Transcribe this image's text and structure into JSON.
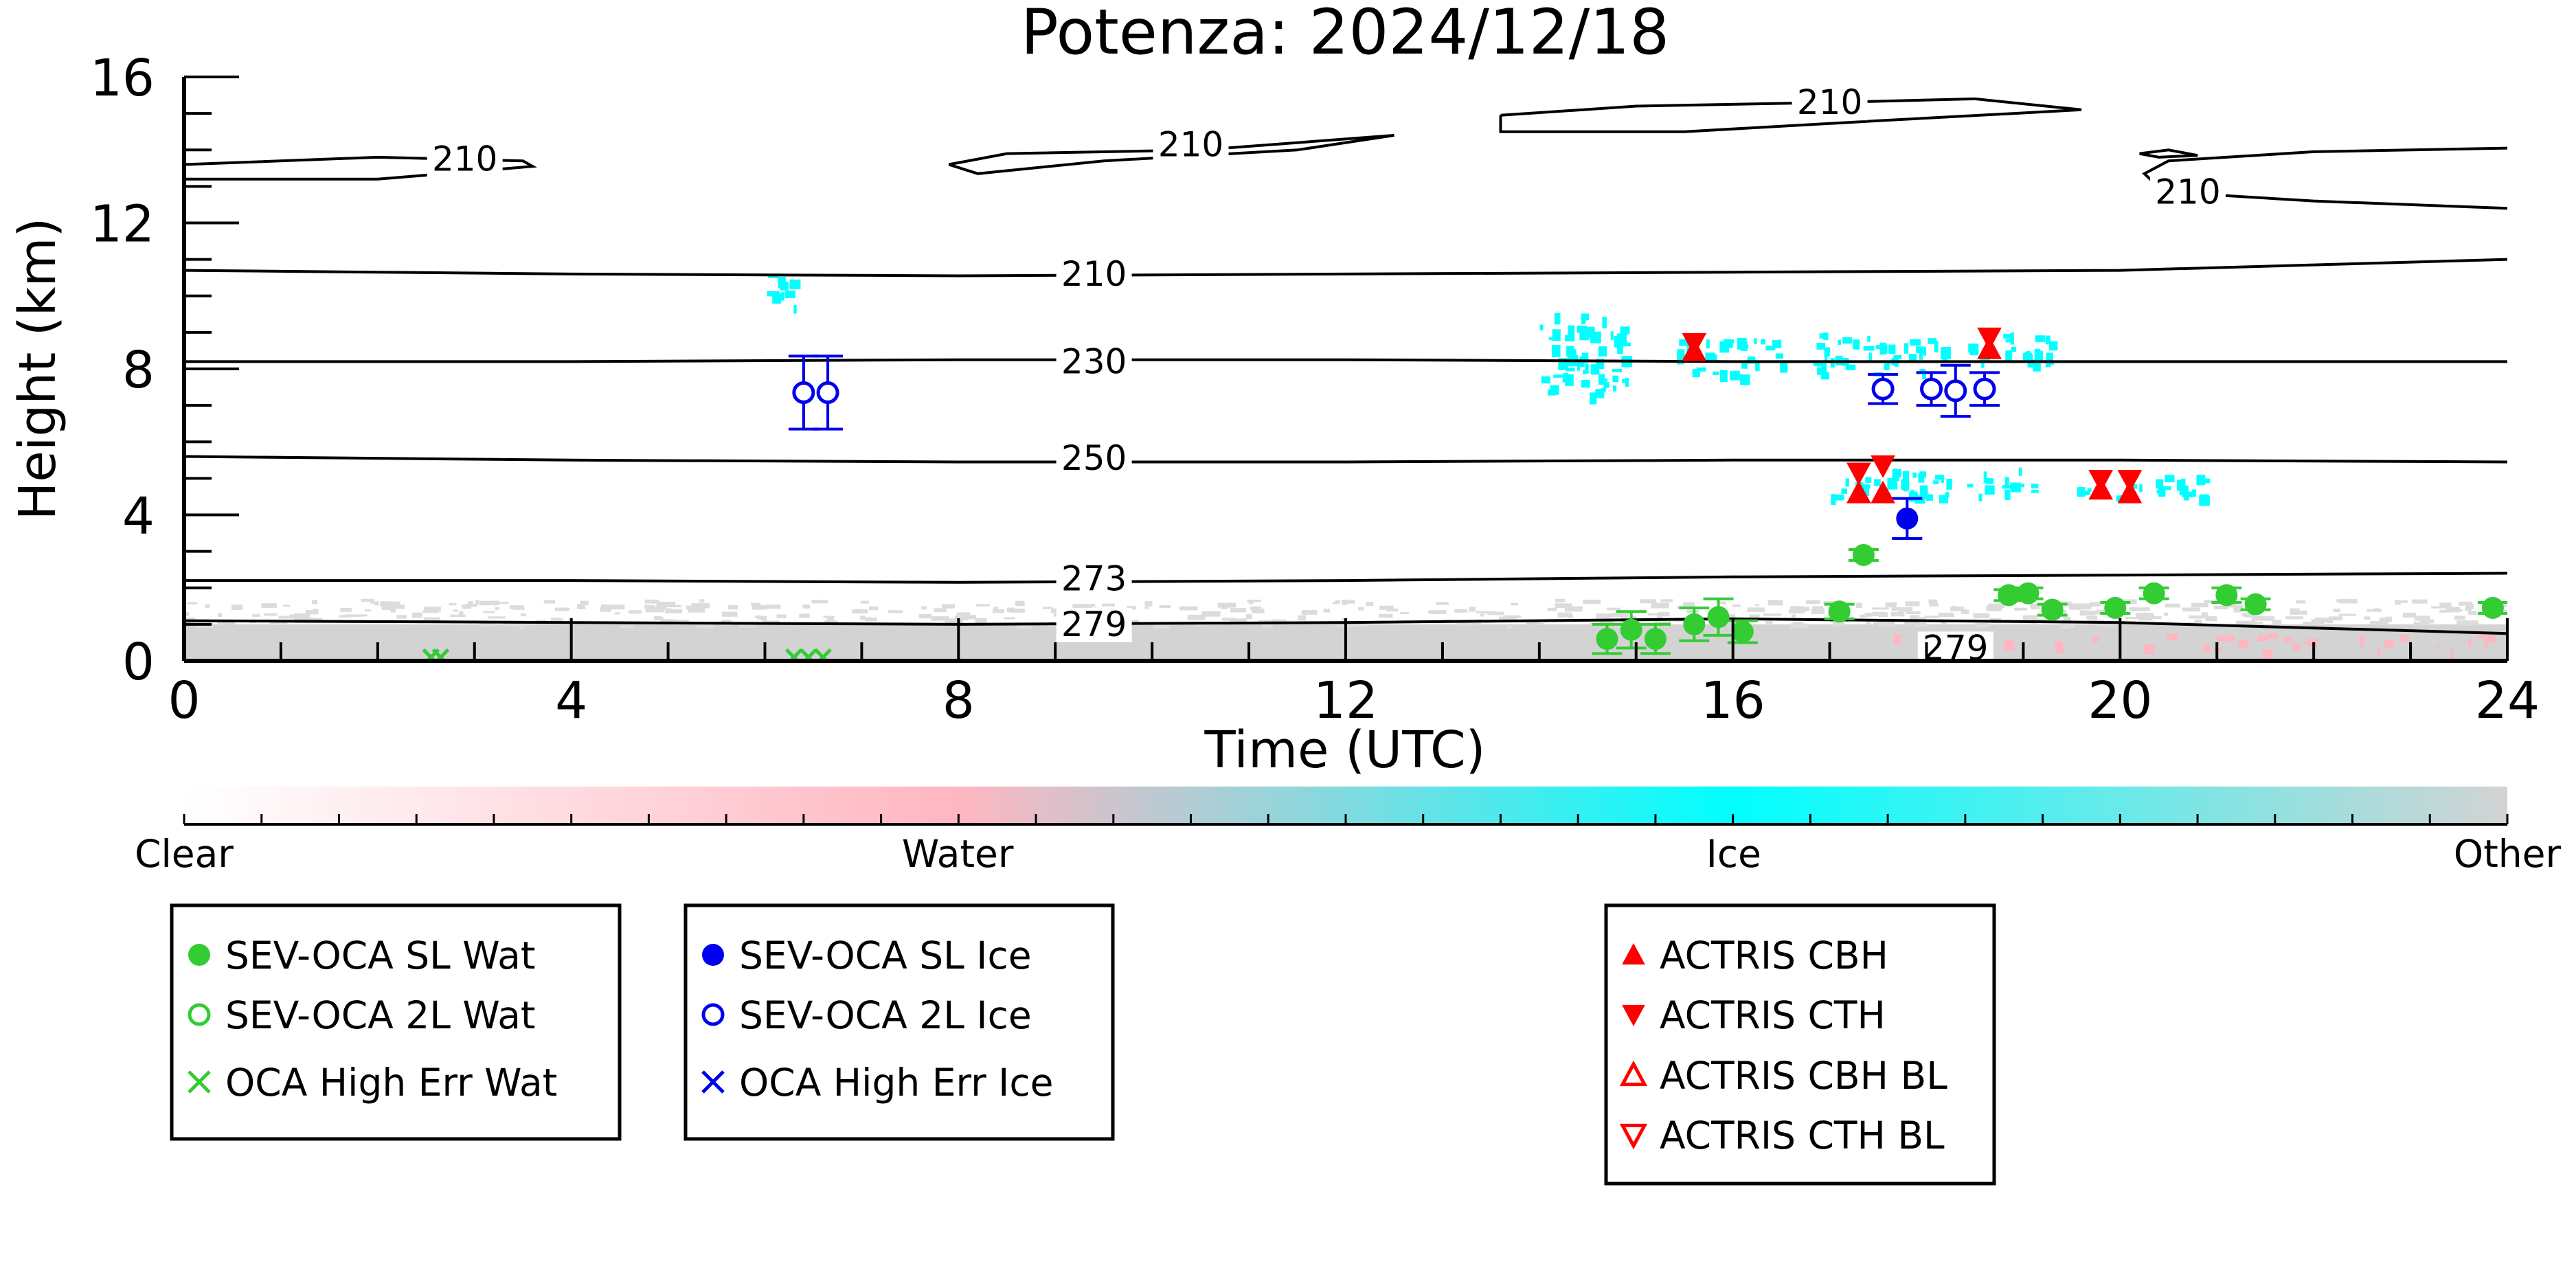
{
  "chart_data": {
    "type": "scatter",
    "title": "Potenza: 2024/12/18",
    "xlabel": "Time (UTC)",
    "ylabel": "Height (km)",
    "xlim": [
      0,
      24
    ],
    "ylim": [
      0,
      16
    ],
    "x_ticks": [
      "0",
      "4",
      "8",
      "12",
      "16",
      "20",
      "24"
    ],
    "y_ticks": [
      "0",
      "4",
      "8",
      "12",
      "16"
    ],
    "colors": {
      "sl_wat": "#33cc33",
      "ice": "#0000ee",
      "actris": "#ff0000",
      "ice_mask": "#00ffff",
      "other_mask": "#d3d3d3",
      "water_mask": "#ffb6c1"
    },
    "colorbar": {
      "labels": [
        "Clear",
        "Water",
        "Ice",
        "Other"
      ],
      "positions": [
        0,
        0.333,
        0.667,
        1
      ]
    },
    "legend_groups": [
      {
        "name": "water",
        "items": [
          {
            "label": "SEV-OCA SL Wat",
            "marker": "filled-circle",
            "color": "#33cc33"
          },
          {
            "label": "SEV-OCA 2L Wat",
            "marker": "open-circle",
            "color": "#33cc33"
          },
          {
            "label": "OCA High Err Wat",
            "marker": "x",
            "color": "#33cc33"
          }
        ]
      },
      {
        "name": "ice",
        "items": [
          {
            "label": "SEV-OCA SL Ice",
            "marker": "filled-circle",
            "color": "#0000ee"
          },
          {
            "label": "SEV-OCA 2L Ice",
            "marker": "open-circle",
            "color": "#0000ee"
          },
          {
            "label": "OCA High Err Ice",
            "marker": "x",
            "color": "#0000ee"
          }
        ]
      },
      {
        "name": "actris",
        "items": [
          {
            "label": "ACTRIS CBH",
            "marker": "triangle-up",
            "color": "#ff0000"
          },
          {
            "label": "ACTRIS CTH",
            "marker": "triangle-down",
            "color": "#ff0000"
          },
          {
            "label": "ACTRIS CBH BL",
            "marker": "triangle-up-open",
            "color": "#ff0000"
          },
          {
            "label": "ACTRIS CTH BL",
            "marker": "triangle-down-open",
            "color": "#ff0000"
          }
        ]
      }
    ],
    "series": [
      {
        "name": "SEV-OCA SL Wat",
        "marker": "filled-circle",
        "color": "#33cc33",
        "points": [
          {
            "x": 14.7,
            "y": 0.6,
            "err": 0.4
          },
          {
            "x": 14.95,
            "y": 0.85,
            "err": 0.5
          },
          {
            "x": 15.2,
            "y": 0.6,
            "err": 0.4
          },
          {
            "x": 15.6,
            "y": 1.0,
            "err": 0.45
          },
          {
            "x": 15.85,
            "y": 1.2,
            "err": 0.5
          },
          {
            "x": 16.1,
            "y": 0.8,
            "err": 0.3
          },
          {
            "x": 17.1,
            "y": 1.35,
            "err": 0.2
          },
          {
            "x": 17.35,
            "y": 2.9,
            "err": 0.15
          },
          {
            "x": 18.85,
            "y": 1.8,
            "err": 0.15
          },
          {
            "x": 19.05,
            "y": 1.85,
            "err": 0.15
          },
          {
            "x": 19.3,
            "y": 1.4,
            "err": 0.15
          },
          {
            "x": 19.95,
            "y": 1.45,
            "err": 0.15
          },
          {
            "x": 20.35,
            "y": 1.85,
            "err": 0.15
          },
          {
            "x": 21.1,
            "y": 1.8,
            "err": 0.2
          },
          {
            "x": 21.4,
            "y": 1.55,
            "err": 0.15
          },
          {
            "x": 23.85,
            "y": 1.45,
            "err": 0.15
          }
        ]
      },
      {
        "name": "SEV-OCA 2L Wat",
        "marker": "open-circle",
        "color": "#33cc33",
        "points": []
      },
      {
        "name": "OCA High Err Wat",
        "marker": "x",
        "color": "#33cc33",
        "points": [
          {
            "x": 2.55,
            "y": 0.1
          },
          {
            "x": 2.65,
            "y": 0.1
          },
          {
            "x": 6.3,
            "y": 0.1
          },
          {
            "x": 6.45,
            "y": 0.1
          },
          {
            "x": 6.6,
            "y": 0.1
          }
        ]
      },
      {
        "name": "SEV-OCA SL Ice",
        "marker": "filled-circle",
        "color": "#0000ee",
        "points": [
          {
            "x": 17.8,
            "y": 3.9,
            "err": 0.55
          }
        ]
      },
      {
        "name": "SEV-OCA 2L Ice",
        "marker": "open-circle",
        "color": "#0000ee",
        "points": [
          {
            "x": 6.4,
            "y": 7.35,
            "err": 1.0
          },
          {
            "x": 6.65,
            "y": 7.35,
            "err": 1.0
          },
          {
            "x": 17.55,
            "y": 7.45,
            "err": 0.4
          },
          {
            "x": 18.05,
            "y": 7.45,
            "err": 0.45
          },
          {
            "x": 18.3,
            "y": 7.4,
            "err": 0.7
          },
          {
            "x": 18.6,
            "y": 7.45,
            "err": 0.45
          }
        ]
      },
      {
        "name": "ACTRIS CBH",
        "marker": "triangle-up",
        "color": "#ff0000",
        "points": [
          {
            "x": 15.6,
            "y": 8.5
          },
          {
            "x": 17.3,
            "y": 4.6
          },
          {
            "x": 17.55,
            "y": 4.6
          },
          {
            "x": 18.65,
            "y": 8.55
          },
          {
            "x": 19.8,
            "y": 4.7
          },
          {
            "x": 20.1,
            "y": 4.6
          }
        ]
      },
      {
        "name": "ACTRIS CTH",
        "marker": "triangle-down",
        "color": "#ff0000",
        "points": [
          {
            "x": 15.6,
            "y": 8.7
          },
          {
            "x": 17.3,
            "y": 5.15
          },
          {
            "x": 17.55,
            "y": 5.35
          },
          {
            "x": 18.65,
            "y": 8.85
          },
          {
            "x": 19.8,
            "y": 4.95
          },
          {
            "x": 20.1,
            "y": 4.95
          }
        ]
      },
      {
        "name": "ACTRIS CBH BL",
        "marker": "triangle-up-open",
        "color": "#ff0000",
        "points": []
      },
      {
        "name": "ACTRIS CTH BL",
        "marker": "triangle-down-open",
        "color": "#ff0000",
        "points": []
      }
    ],
    "contours": [
      {
        "label": "279",
        "points": [
          [
            0,
            1.1
          ],
          [
            4,
            1.05
          ],
          [
            8,
            1.0
          ],
          [
            12,
            1.05
          ],
          [
            16,
            1.15
          ],
          [
            20,
            1.05
          ],
          [
            24,
            0.75
          ]
        ]
      },
      {
        "label": "273",
        "points": [
          [
            0,
            2.2
          ],
          [
            4,
            2.2
          ],
          [
            8,
            2.15
          ],
          [
            12,
            2.2
          ],
          [
            16,
            2.3
          ],
          [
            20,
            2.35
          ],
          [
            24,
            2.4
          ]
        ]
      },
      {
        "label": "250",
        "points": [
          [
            0,
            5.6
          ],
          [
            4,
            5.5
          ],
          [
            8,
            5.45
          ],
          [
            12,
            5.45
          ],
          [
            16,
            5.5
          ],
          [
            20,
            5.5
          ],
          [
            24,
            5.45
          ]
        ]
      },
      {
        "label": "230",
        "points": [
          [
            0,
            8.2
          ],
          [
            4,
            8.2
          ],
          [
            8,
            8.25
          ],
          [
            12,
            8.25
          ],
          [
            16,
            8.2
          ],
          [
            20,
            8.2
          ],
          [
            24,
            8.2
          ]
        ]
      },
      {
        "label": "210",
        "points": [
          [
            0,
            10.7
          ],
          [
            4,
            10.6
          ],
          [
            8,
            10.55
          ],
          [
            12,
            10.6
          ],
          [
            16,
            10.65
          ],
          [
            20,
            10.7
          ],
          [
            24,
            11.0
          ]
        ]
      },
      {
        "label": "210",
        "points": [
          [
            0,
            13.6
          ],
          [
            2,
            13.8
          ],
          [
            3.5,
            13.7
          ],
          [
            3.6,
            13.55
          ],
          [
            2,
            13.2
          ],
          [
            0,
            13.2
          ]
        ]
      },
      {
        "label": "210",
        "points": [
          [
            7.9,
            13.6
          ],
          [
            8.5,
            13.9
          ],
          [
            10.5,
            14.0
          ],
          [
            12.5,
            14.4
          ],
          [
            11.5,
            14.0
          ],
          [
            9.5,
            13.7
          ],
          [
            8.2,
            13.35
          ],
          [
            7.9,
            13.6
          ]
        ]
      },
      {
        "label": "210",
        "points": [
          [
            13.6,
            14.95
          ],
          [
            15,
            15.2
          ],
          [
            17,
            15.3
          ],
          [
            18.5,
            15.4
          ],
          [
            19.6,
            15.1
          ],
          [
            17.5,
            14.8
          ],
          [
            15.5,
            14.5
          ],
          [
            13.6,
            14.5
          ],
          [
            13.6,
            14.95
          ]
        ]
      },
      {
        "label": "210",
        "points": [
          [
            20.2,
            13.9
          ],
          [
            20.5,
            14.0
          ],
          [
            20.8,
            13.85
          ],
          [
            20.4,
            13.8
          ],
          [
            20.2,
            13.9
          ]
        ]
      },
      {
        "label": "210",
        "points": [
          [
            24,
            14.05
          ],
          [
            22,
            13.95
          ],
          [
            20.5,
            13.7
          ],
          [
            20.25,
            13.35
          ],
          [
            20.45,
            12.85
          ],
          [
            22,
            12.6
          ],
          [
            24,
            12.4
          ]
        ]
      }
    ],
    "inline_labels": [
      {
        "text": "210",
        "x": 2.9,
        "y": 13.75
      },
      {
        "text": "210",
        "x": 10.4,
        "y": 14.15
      },
      {
        "text": "210",
        "x": 17.0,
        "y": 15.3
      },
      {
        "text": "210",
        "x": 20.7,
        "y": 12.85
      },
      {
        "text": "210",
        "x": 9.4,
        "y": 10.6
      },
      {
        "text": "230",
        "x": 9.4,
        "y": 8.2
      },
      {
        "text": "250",
        "x": 9.4,
        "y": 5.55
      },
      {
        "text": "273",
        "x": 9.4,
        "y": 2.25
      },
      {
        "text": "279",
        "x": 9.4,
        "y": 1.0
      },
      {
        "text": "279",
        "x": 18.3,
        "y": 0.35
      }
    ],
    "mask_patches": [
      {
        "kind": "other",
        "x0": 0,
        "x1": 24,
        "y0": 0,
        "y1": 1.0
      },
      {
        "kind": "other-sparse",
        "x0": 0,
        "x1": 24,
        "y0": 1.0,
        "y1": 1.7
      },
      {
        "kind": "ice",
        "x0": 6.0,
        "x1": 6.3,
        "y0": 9.6,
        "y1": 10.6
      },
      {
        "kind": "ice",
        "x0": 14.0,
        "x1": 14.9,
        "y0": 7.3,
        "y1": 9.6
      },
      {
        "kind": "ice",
        "x0": 15.4,
        "x1": 16.5,
        "y0": 7.8,
        "y1": 8.9
      },
      {
        "kind": "ice",
        "x0": 16.8,
        "x1": 18.2,
        "y0": 7.9,
        "y1": 9.0
      },
      {
        "kind": "ice",
        "x0": 18.4,
        "x1": 19.3,
        "y0": 8.2,
        "y1": 9.1
      },
      {
        "kind": "ice",
        "x0": 17.0,
        "x1": 19.1,
        "y0": 4.5,
        "y1": 5.3
      },
      {
        "kind": "ice",
        "x0": 19.5,
        "x1": 20.9,
        "y0": 4.5,
        "y1": 5.1
      },
      {
        "kind": "water",
        "x0": 17.5,
        "x1": 24,
        "y0": 0.3,
        "y1": 0.75
      }
    ]
  }
}
